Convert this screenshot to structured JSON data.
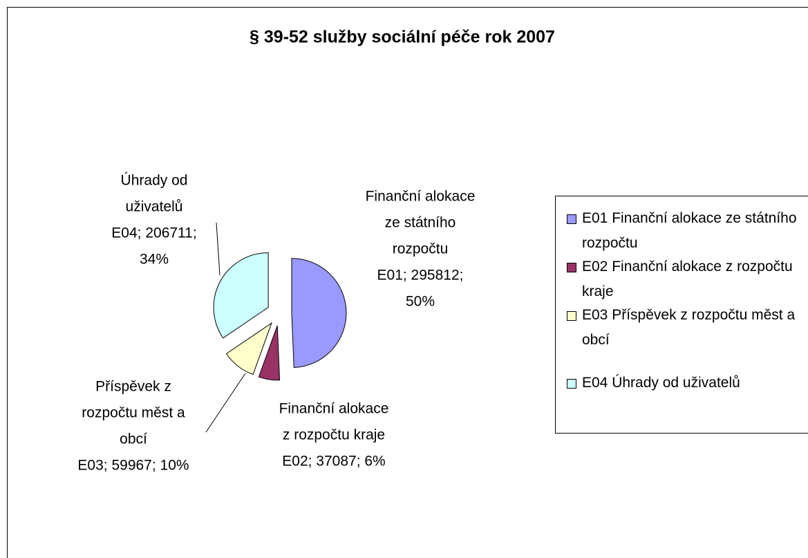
{
  "chart_data": {
    "type": "pie",
    "title": "§ 39-52 služby sociální péče rok 2007",
    "categories": [
      "E01 Finanční alokace ze státního rozpočtu",
      "E02 Finanční alokace z rozpočtu kraje",
      "E03 Příspěvek z rozpočtu měst a obcí",
      "E04 Úhrady od uživatelů"
    ],
    "values": [
      295812,
      37087,
      59967,
      206711
    ],
    "value_labels": [
      [
        "Finanční alokace",
        "ze státního",
        "rozpočtu",
        "E01; 295812;",
        "50%"
      ],
      [
        "Finanční alokace",
        "z rozpočtu kraje",
        "E02; 37087; 6%"
      ],
      [
        "Příspěvek z",
        "rozpočtu měst a",
        "obcí",
        "E03; 59967; 10%"
      ],
      [
        "Úhrady od",
        "uživatelů",
        "E04; 206711;",
        "34%"
      ]
    ],
    "colors": [
      "#9999ff",
      "#993366",
      "#ffffcc",
      "#ccffff"
    ],
    "legend": "right"
  }
}
